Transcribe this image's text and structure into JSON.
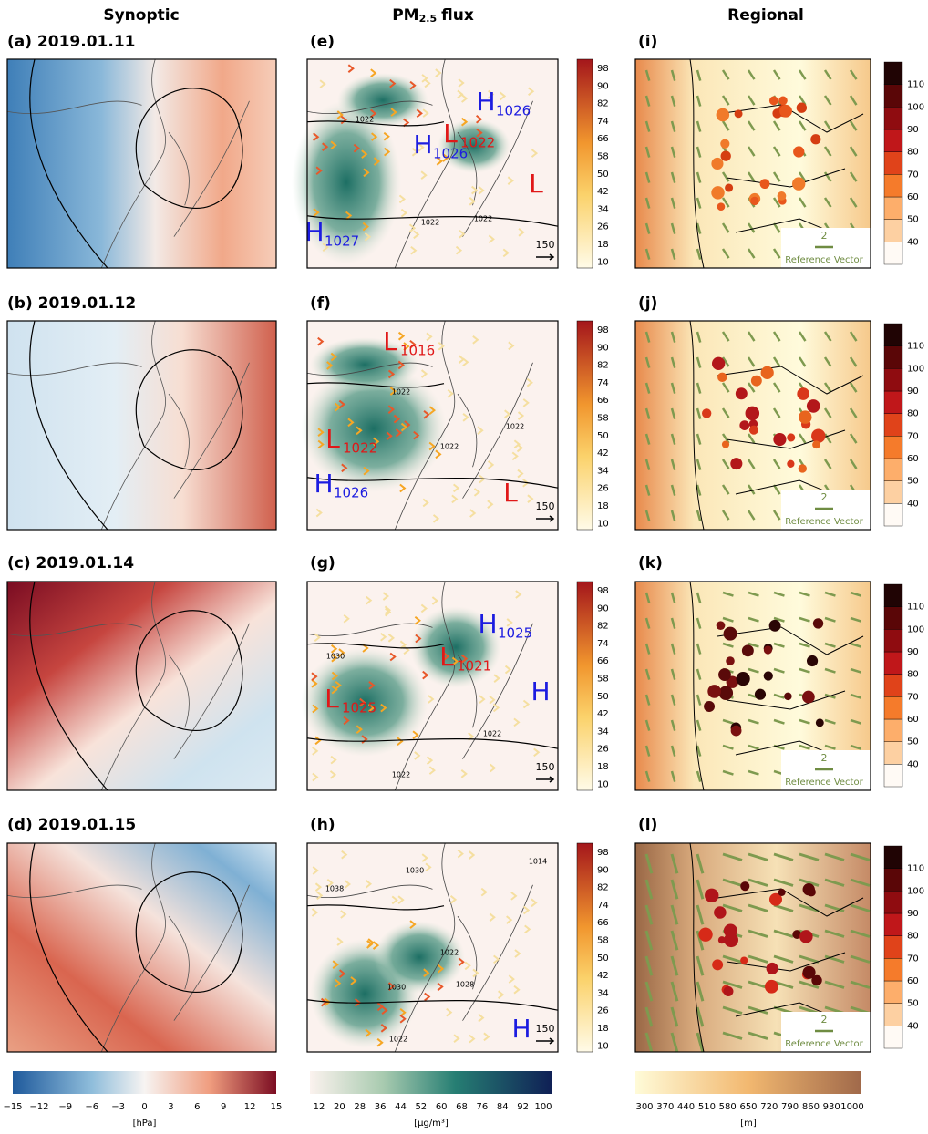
{
  "headers": {
    "synoptic": "Synoptic",
    "pm_flux": {
      "pre": "PM",
      "sub": "2.5",
      "post": "flux"
    },
    "regional": "Regional"
  },
  "synoptic_panels": [
    {
      "label": "(a) 2019.01.11"
    },
    {
      "label": "(b) 2019.01.12"
    },
    {
      "label": "(c) 2019.01.14"
    },
    {
      "label": "(d) 2019.01.15"
    }
  ],
  "flux_panels": [
    {
      "label": "(e)",
      "centers": [
        {
          "letter": "H",
          "value": "1026"
        },
        {
          "letter": "L",
          "value": "1022"
        },
        {
          "letter": "H",
          "value": "1026"
        },
        {
          "letter": "H",
          "value": "1027"
        },
        {
          "letter": "L"
        }
      ],
      "contour_labels": [
        "1022",
        "1022",
        "1022"
      ],
      "reference": "150"
    },
    {
      "label": "(f)",
      "centers": [
        {
          "letter": "L",
          "value": "1016"
        },
        {
          "letter": "L",
          "value": "1022"
        },
        {
          "letter": "H",
          "value": "1026"
        },
        {
          "letter": "L"
        }
      ],
      "contour_labels": [
        "1022",
        "1022",
        "1022"
      ],
      "reference": "150"
    },
    {
      "label": "(g)",
      "centers": [
        {
          "letter": "H",
          "value": "1025"
        },
        {
          "letter": "L",
          "value": "1021"
        },
        {
          "letter": "L",
          "value": "1025"
        },
        {
          "letter": "H"
        }
      ],
      "contour_labels": [
        "1030",
        "1022",
        "1022"
      ],
      "reference": "150"
    },
    {
      "label": "(h)",
      "centers": [
        {
          "letter": "H"
        }
      ],
      "contour_labels": [
        "1038",
        "1030",
        "1014",
        "1022",
        "1030",
        "1028",
        "1022"
      ],
      "reference": "150"
    }
  ],
  "regional_panels": [
    {
      "label": "(i)",
      "reference_value": "2",
      "reference_text": "Reference Vector"
    },
    {
      "label": "(j)",
      "reference_value": "2",
      "reference_text": "Reference Vector"
    },
    {
      "label": "(k)",
      "reference_value": "2",
      "reference_text": "Reference Vector"
    },
    {
      "label": "(l)",
      "reference_value": "2",
      "reference_text": "Reference Vector"
    }
  ],
  "flux_colorbar_ticks": [
    "98",
    "90",
    "82",
    "74",
    "66",
    "58",
    "50",
    "42",
    "34",
    "26",
    "18",
    "10"
  ],
  "regional_colorbar_ticks": [
    "110",
    "100",
    "90",
    "80",
    "70",
    "60",
    "50",
    "40"
  ],
  "bottom_colorbars": {
    "synoptic": {
      "ticks": [
        "−15",
        "−12",
        "−9",
        "−6",
        "−3",
        "0",
        "3",
        "6",
        "9",
        "12",
        "15"
      ],
      "unit": "[hPa]"
    },
    "pm_flux": {
      "ticks": [
        "12",
        "20",
        "28",
        "36",
        "44",
        "52",
        "60",
        "68",
        "76",
        "84",
        "92",
        "100"
      ],
      "unit": "[μg/m³]"
    },
    "regional": {
      "ticks": [
        "300",
        "370",
        "440",
        "510",
        "580",
        "650",
        "720",
        "790",
        "860",
        "930",
        "1000"
      ],
      "unit": "[m]"
    }
  }
}
